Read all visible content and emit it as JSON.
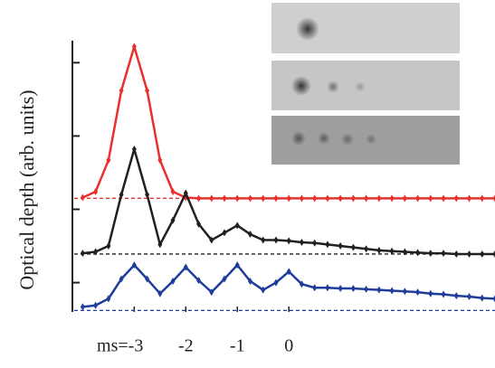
{
  "chart_data": {
    "type": "line",
    "ylabel": "Optical depth (arb. units)",
    "xlim": [
      -4.2,
      4.0
    ],
    "ylim": [
      -0.4,
      3.3
    ],
    "xticks": [
      {
        "value": -3,
        "label": "ms=-3"
      },
      -2,
      -1,
      0
    ],
    "yticks": [
      0,
      1,
      2,
      3
    ],
    "x": [
      -4,
      -3.75,
      -3.5,
      -3.25,
      -3,
      -2.75,
      -2.5,
      -2.25,
      -2,
      -1.75,
      -1.5,
      -1.25,
      -1,
      -0.75,
      -0.5,
      -0.25,
      0,
      0.25,
      0.5,
      0.75,
      1,
      1.25,
      1.5,
      1.75,
      2,
      2.25,
      2.5,
      2.75,
      3,
      3.25,
      3.5,
      3.75,
      4
    ],
    "series": [
      {
        "color": "#e8302c",
        "baseline": 1.15,
        "values": [
          1.16,
          1.24,
          1.67,
          2.62,
          3.22,
          2.62,
          1.67,
          1.24,
          1.16,
          1.15,
          1.15,
          1.15,
          1.15,
          1.15,
          1.15,
          1.15,
          1.15,
          1.15,
          1.15,
          1.15,
          1.15,
          1.15,
          1.15,
          1.15,
          1.15,
          1.15,
          1.15,
          1.15,
          1.15,
          1.15,
          1.15,
          1.15,
          1.15
        ]
      },
      {
        "color": "#231f20",
        "baseline": 0.39,
        "values": [
          0.4,
          0.42,
          0.5,
          1.2,
          1.82,
          1.2,
          0.52,
          0.85,
          1.22,
          0.8,
          0.58,
          0.68,
          0.78,
          0.66,
          0.58,
          0.58,
          0.57,
          0.55,
          0.54,
          0.52,
          0.5,
          0.48,
          0.46,
          0.44,
          0.43,
          0.42,
          0.41,
          0.4,
          0.4,
          0.39,
          0.39,
          0.39,
          0.39
        ]
      },
      {
        "color": "#1f3d9a",
        "baseline": -0.38,
        "values": [
          -0.33,
          -0.31,
          -0.22,
          0.05,
          0.24,
          0.05,
          -0.15,
          0.02,
          0.21,
          0.03,
          -0.13,
          0.05,
          0.24,
          0.02,
          -0.1,
          0.0,
          0.15,
          -0.02,
          -0.07,
          -0.07,
          -0.08,
          -0.08,
          -0.09,
          -0.1,
          -0.11,
          -0.12,
          -0.13,
          -0.15,
          -0.16,
          -0.18,
          -0.19,
          -0.21,
          -0.22
        ]
      }
    ]
  }
}
